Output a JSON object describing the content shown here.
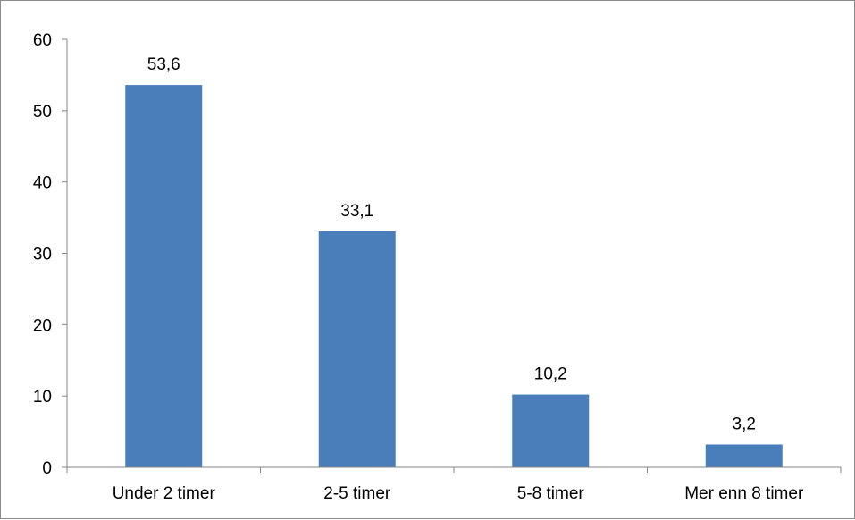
{
  "chart_data": {
    "type": "bar",
    "categories": [
      "Under 2 timer",
      "2-5 timer",
      "5-8 timer",
      "Mer enn 8 timer"
    ],
    "values": [
      53.6,
      33.1,
      10.2,
      3.2
    ],
    "data_labels": [
      "53,6",
      "33,1",
      "10,2",
      "3,2"
    ],
    "y_ticks": [
      0,
      10,
      20,
      30,
      40,
      50,
      60
    ],
    "y_tick_labels": [
      "0",
      "10",
      "20",
      "30",
      "40",
      "50",
      "60"
    ],
    "ylim": [
      0,
      60
    ],
    "grid": false,
    "legend": "none",
    "bar_color": "#4a7ebb",
    "title": "",
    "xlabel": "",
    "ylabel": ""
  }
}
